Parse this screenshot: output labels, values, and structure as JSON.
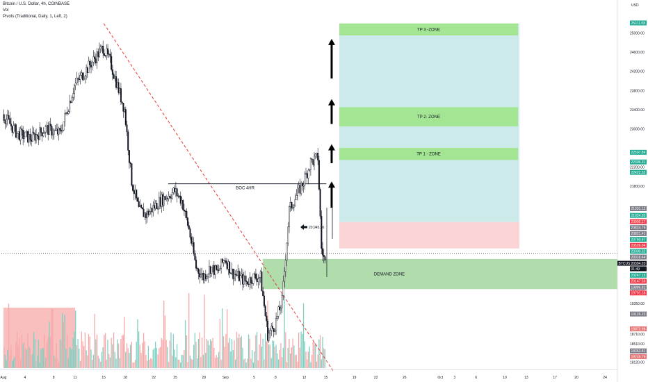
{
  "header": {
    "symbol_line": "Bitcoin / U.S. Dollar, 4h, COINBASE",
    "vol_label": "Vol",
    "pivots_label": "Pivots (Traditional, Daily, 1, Left, 2)"
  },
  "axis": {
    "currency": "USD"
  },
  "colors": {
    "bull": "#ffffff",
    "bear": "#131722",
    "vol_up": "#7fd1c3",
    "vol_down": "#f7a8a8",
    "zone_green": "#a4e594",
    "target_fill": "#cdeaea",
    "stop_fill": "#fbd5d5",
    "demand_fill": "#a9d9a4",
    "trend_line": "#e53935",
    "label_gray": "#787b86",
    "label_green": "#22ab94",
    "label_red": "#f23645",
    "label_dark": "#131722",
    "label_volume": "#e57373"
  },
  "chart_data": {
    "type": "candlestick",
    "title": "Bitcoin / U.S. Dollar, 4h, COINBASE",
    "ylim": [
      18000,
      25400
    ],
    "y_ticks": [
      25000,
      24600,
      24200,
      23800,
      23400,
      23000,
      22200,
      21800,
      19600,
      19350,
      18710,
      18510,
      18120
    ],
    "x_ticks": [
      {
        "label": "Aug",
        "day": 0
      },
      {
        "label": "4",
        "day": 3
      },
      {
        "label": "8",
        "day": 7
      },
      {
        "label": "11",
        "day": 10
      },
      {
        "label": "15",
        "day": 14
      },
      {
        "label": "18",
        "day": 17
      },
      {
        "label": "22",
        "day": 21
      },
      {
        "label": "25",
        "day": 24
      },
      {
        "label": "29",
        "day": 28
      },
      {
        "label": "Sep",
        "day": 31
      },
      {
        "label": "5",
        "day": 35
      },
      {
        "label": "8",
        "day": 38
      },
      {
        "label": "12",
        "day": 42
      },
      {
        "label": "15",
        "day": 45
      },
      {
        "label": "19",
        "day": 49
      },
      {
        "label": "22",
        "day": 52
      },
      {
        "label": "26",
        "day": 56
      },
      {
        "label": "Oct",
        "day": 61
      },
      {
        "label": "3",
        "day": 63
      },
      {
        "label": "6",
        "day": 66
      },
      {
        "label": "10",
        "day": 70
      },
      {
        "label": "13",
        "day": 73
      },
      {
        "label": "17",
        "day": 77
      },
      {
        "label": "20",
        "day": 80
      },
      {
        "label": "24",
        "day": 84
      }
    ],
    "price_waypoints": [
      {
        "day": 0,
        "price": 23300
      },
      {
        "day": 2,
        "price": 22900
      },
      {
        "day": 4,
        "price": 22800
      },
      {
        "day": 6,
        "price": 23000
      },
      {
        "day": 8,
        "price": 22900
      },
      {
        "day": 10,
        "price": 23900
      },
      {
        "day": 12,
        "price": 24300
      },
      {
        "day": 14,
        "price": 24700
      },
      {
        "day": 15,
        "price": 24400
      },
      {
        "day": 16,
        "price": 23900
      },
      {
        "day": 17,
        "price": 23400
      },
      {
        "day": 18,
        "price": 21900
      },
      {
        "day": 19,
        "price": 21300
      },
      {
        "day": 20,
        "price": 21200
      },
      {
        "day": 22,
        "price": 21500
      },
      {
        "day": 24,
        "price": 21700
      },
      {
        "day": 25,
        "price": 21500
      },
      {
        "day": 26,
        "price": 20900
      },
      {
        "day": 27,
        "price": 20100
      },
      {
        "day": 28,
        "price": 19900
      },
      {
        "day": 29,
        "price": 20100
      },
      {
        "day": 30,
        "price": 20000
      },
      {
        "day": 31,
        "price": 20300
      },
      {
        "day": 32,
        "price": 20000
      },
      {
        "day": 33,
        "price": 19900
      },
      {
        "day": 34,
        "price": 19800
      },
      {
        "day": 35,
        "price": 19900
      },
      {
        "day": 36,
        "price": 19900
      },
      {
        "day": 37,
        "price": 18700
      },
      {
        "day": 38,
        "price": 18900
      },
      {
        "day": 39,
        "price": 19400
      },
      {
        "day": 40,
        "price": 21300
      },
      {
        "day": 41,
        "price": 21600
      },
      {
        "day": 42,
        "price": 21900
      },
      {
        "day": 43,
        "price": 22300
      },
      {
        "day": 44,
        "price": 22400
      },
      {
        "day": 44.5,
        "price": 20500
      },
      {
        "day": 45,
        "price": 20200
      }
    ],
    "zones": [
      {
        "label": "TP 3 -ZONE",
        "kind": "tp",
        "top": 25200,
        "bottom": 24950
      },
      {
        "label": "TP 2- ZONE",
        "kind": "tp",
        "top": 23450,
        "bottom": 23050
      },
      {
        "label": "TP 1 - ZONE",
        "kind": "tp",
        "top": 22600,
        "bottom": 22350
      },
      {
        "label": "DEMAND ZONE",
        "kind": "demand",
        "top": 20280,
        "bottom": 19650
      }
    ],
    "target_box": {
      "top": 25200,
      "bottom": 21050
    },
    "stop_box": {
      "top": 21050,
      "bottom": 20500
    },
    "boc": {
      "label": "BOC 4HR",
      "price": 21850,
      "from_day": 23,
      "to_day": 44.5
    },
    "entry_marker": {
      "label": "20,945.26",
      "price": 20945.26
    },
    "trendline": {
      "from": {
        "day": 14,
        "price": 25200
      },
      "to": {
        "day": 46,
        "price": 17950
      }
    },
    "current_price": 20394.2,
    "price_labels": [
      {
        "text": "25211.08",
        "price": 25211.08,
        "color": "label_green"
      },
      {
        "text": "22507.84",
        "price": 22507.84,
        "color": "label_green"
      },
      {
        "text": "22306.31",
        "price": 22306.31,
        "color": "label_green"
      },
      {
        "text": "22422.32",
        "price": 22090,
        "color": "label_green"
      },
      {
        "text": "21331.12",
        "price": 21331.12,
        "color": "label_gray"
      },
      {
        "text": "21034.20",
        "price": 21190,
        "color": "label_green"
      },
      {
        "text": "20909.17",
        "price": 21060,
        "color": "label_red"
      },
      {
        "text": "20824.79",
        "price": 20935,
        "color": "label_gray"
      },
      {
        "text": "20821.41",
        "price": 20810,
        "color": "label_gray"
      },
      {
        "text": "20760.67",
        "price": 20690,
        "color": "label_green"
      },
      {
        "text": "20509.94",
        "price": 20565,
        "color": "label_red"
      },
      {
        "text": "20330.32",
        "price": 20440,
        "color": "label_green"
      },
      {
        "text": "20318.44",
        "price": 20320,
        "color": "label_gray"
      },
      {
        "text": "BTCUSD",
        "price": 20190,
        "color": "label_dark"
      },
      {
        "text": "20394.20",
        "price": 20190,
        "color": "label_dark"
      },
      {
        "text": "01:49",
        "price": 20075,
        "color": "label_dark"
      },
      {
        "text": "20247.15",
        "price": 19940,
        "color": "label_green"
      },
      {
        "text": "20147.56",
        "price": 19815,
        "color": "label_red"
      },
      {
        "text": "19886.81",
        "price": 19690,
        "color": "label_gray"
      },
      {
        "text": "19791.18",
        "price": 19570,
        "color": "label_red"
      },
      {
        "text": "19126.23",
        "price": 19130,
        "color": "label_gray"
      },
      {
        "text": "18873.98",
        "price": 18820,
        "color": "label_volume"
      },
      {
        "text": "18363.81",
        "price": 18360,
        "color": "label_gray"
      },
      {
        "text": "18235.79",
        "price": 18240,
        "color": "label_volume"
      }
    ],
    "volume_block": {
      "from_day": 0,
      "to_day": 10,
      "height": 0.92
    }
  }
}
